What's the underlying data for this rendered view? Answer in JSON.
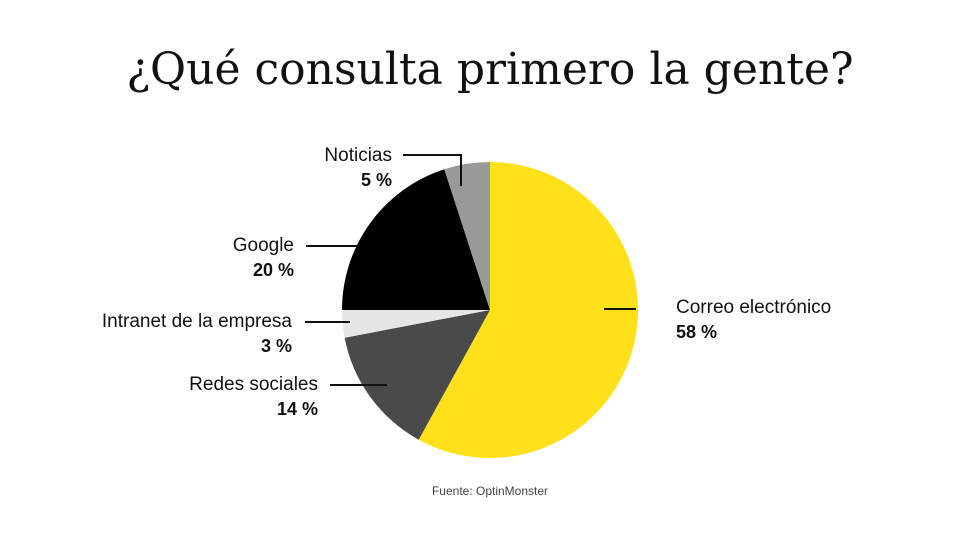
{
  "chart_data": {
    "type": "pie",
    "title": "¿Qué consulta primero la gente?",
    "source": "Fuente: OptinMonster",
    "slices": [
      {
        "label": "Correo electrónico",
        "value": 58,
        "value_label": "58 %",
        "color": "#FFE01B"
      },
      {
        "label": "Redes sociales",
        "value": 14,
        "value_label": "14 %",
        "color": "#4A4A4A"
      },
      {
        "label": "Intranet de la empresa",
        "value": 3,
        "value_label": "3 %",
        "color": "#E6E6E6"
      },
      {
        "label": "Google",
        "value": 20,
        "value_label": "20 %",
        "color": "#000000"
      },
      {
        "label": "Noticias",
        "value": 5,
        "value_label": "5 %",
        "color": "#999999"
      }
    ]
  }
}
